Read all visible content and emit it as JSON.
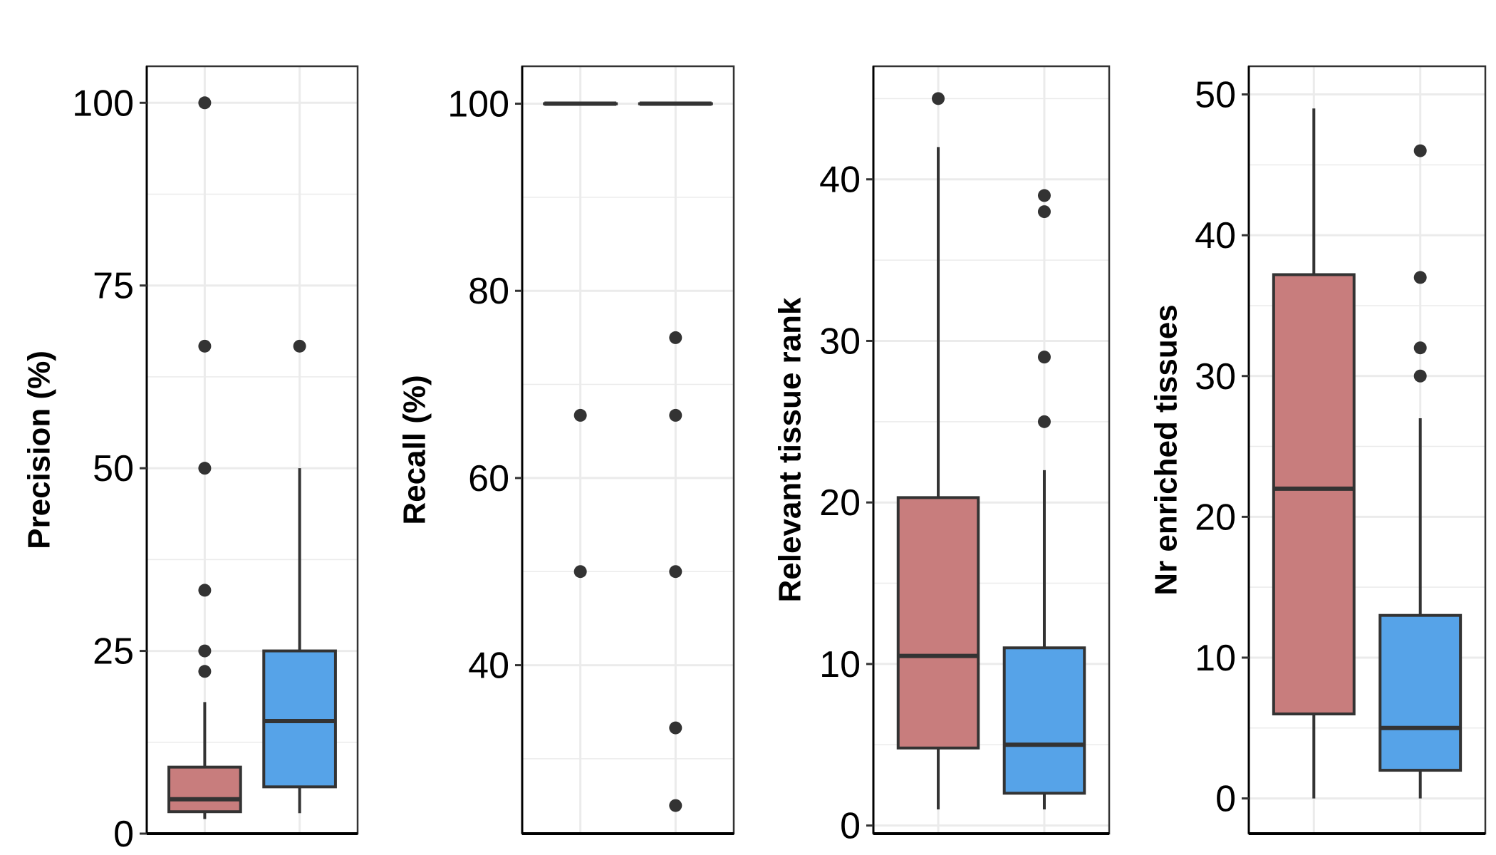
{
  "colors": {
    "group_a": "#c87d7d",
    "group_b": "#56a3e8",
    "box_stroke": "#333333",
    "point": "#333333",
    "grid": "#ebebeb",
    "panel_border": "#333333"
  },
  "chart_data": [
    {
      "type": "box",
      "ylabel": "Precision (%)",
      "ylim": [
        0,
        105
      ],
      "yticks": [
        0,
        25,
        50,
        75,
        100
      ],
      "grid": true,
      "series": [
        {
          "color_key": "group_a",
          "box": {
            "whisker_low": 2,
            "q1": 3,
            "median": 4.7,
            "q3": 9.1,
            "whisker_high": 18
          },
          "outliers": [
            22.2,
            25,
            33.3,
            50,
            66.7,
            100
          ]
        },
        {
          "color_key": "group_b",
          "box": {
            "whisker_low": 2.8,
            "q1": 6.4,
            "median": 15.4,
            "q3": 25,
            "whisker_high": 50
          },
          "outliers": [
            66.7
          ]
        }
      ]
    },
    {
      "type": "box",
      "ylabel": "Recall (%)",
      "ylim": [
        22,
        104
      ],
      "yticks": [
        40,
        60,
        80,
        100
      ],
      "grid": true,
      "series": [
        {
          "color_key": "group_a",
          "box": {
            "whisker_low": 100,
            "q1": 100,
            "median": 100,
            "q3": 100,
            "whisker_high": 100
          },
          "outliers": [
            50,
            66.7
          ]
        },
        {
          "color_key": "group_b",
          "box": {
            "whisker_low": 100,
            "q1": 100,
            "median": 100,
            "q3": 100,
            "whisker_high": 100
          },
          "outliers": [
            25,
            33.3,
            50,
            66.7,
            75
          ]
        }
      ]
    },
    {
      "type": "box",
      "ylabel": "Relevant tissue rank",
      "ylim": [
        -0.5,
        47
      ],
      "yticks": [
        0,
        10,
        20,
        30,
        40
      ],
      "grid": true,
      "series": [
        {
          "color_key": "group_a",
          "box": {
            "whisker_low": 1,
            "q1": 4.8,
            "median": 10.5,
            "q3": 20.3,
            "whisker_high": 42
          },
          "outliers": [
            45
          ]
        },
        {
          "color_key": "group_b",
          "box": {
            "whisker_low": 1,
            "q1": 2,
            "median": 5,
            "q3": 11,
            "whisker_high": 22
          },
          "outliers": [
            25,
            29,
            38,
            39
          ]
        }
      ]
    },
    {
      "type": "box",
      "ylabel": "Nr enriched tissues",
      "ylim": [
        -2.5,
        52
      ],
      "yticks": [
        0,
        10,
        20,
        30,
        40,
        50
      ],
      "grid": true,
      "series": [
        {
          "color_key": "group_a",
          "box": {
            "whisker_low": 0,
            "q1": 6,
            "median": 22,
            "q3": 37.2,
            "whisker_high": 49
          },
          "outliers": []
        },
        {
          "color_key": "group_b",
          "box": {
            "whisker_low": 0,
            "q1": 2,
            "median": 5,
            "q3": 13,
            "whisker_high": 27
          },
          "outliers": [
            30,
            32,
            37,
            46
          ]
        }
      ]
    }
  ]
}
